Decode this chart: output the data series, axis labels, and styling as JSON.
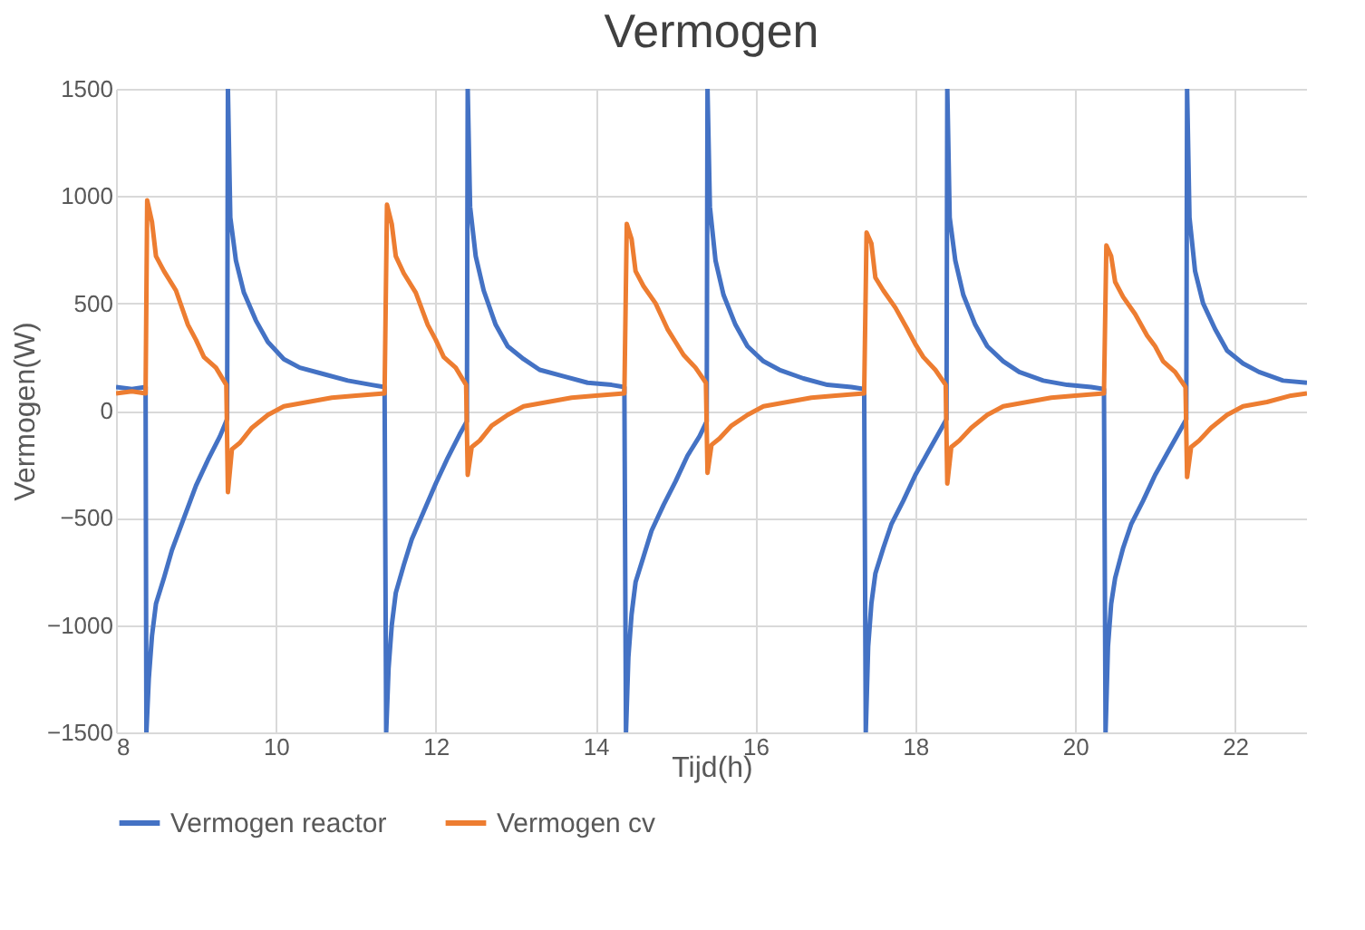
{
  "chart_data": {
    "type": "line",
    "title": "Vermogen",
    "xlabel": "Tijd(h)",
    "ylabel": "Vermogen(W)",
    "xlim": [
      8,
      22.9
    ],
    "xticks": [
      8,
      10,
      12,
      14,
      16,
      18,
      20,
      22
    ],
    "ylim": [
      -1500,
      1500
    ],
    "yticks": [
      -1500,
      -1000,
      -500,
      0,
      500,
      1000,
      1500
    ],
    "grid": true,
    "legend": "bottom",
    "line_style": "solid",
    "marker": "none",
    "series": [
      {
        "name": "Vermogen reactor",
        "color": "#4472c4",
        "x": [
          8,
          8.2,
          8.37,
          8.38,
          8.41,
          8.45,
          8.5,
          8.6,
          8.7,
          8.85,
          9.0,
          9.15,
          9.3,
          9.39,
          9.4,
          9.43,
          9.5,
          9.6,
          9.75,
          9.9,
          10.1,
          10.3,
          10.6,
          10.9,
          11.2,
          11.36,
          11.38,
          11.41,
          11.45,
          11.5,
          11.6,
          11.7,
          11.85,
          12.0,
          12.15,
          12.3,
          12.39,
          12.4,
          12.43,
          12.5,
          12.6,
          12.75,
          12.9,
          13.1,
          13.3,
          13.6,
          13.9,
          14.2,
          14.36,
          14.38,
          14.41,
          14.45,
          14.5,
          14.6,
          14.7,
          14.85,
          15.0,
          15.15,
          15.3,
          15.39,
          15.4,
          15.43,
          15.5,
          15.6,
          15.75,
          15.9,
          16.1,
          16.3,
          16.6,
          16.9,
          17.2,
          17.36,
          17.38,
          17.41,
          17.45,
          17.5,
          17.6,
          17.7,
          17.85,
          18.0,
          18.15,
          18.3,
          18.39,
          18.4,
          18.43,
          18.5,
          18.6,
          18.75,
          18.9,
          19.1,
          19.3,
          19.6,
          19.9,
          20.2,
          20.36,
          20.38,
          20.41,
          20.45,
          20.5,
          20.6,
          20.7,
          20.85,
          21.0,
          21.15,
          21.3,
          21.39,
          21.4,
          21.43,
          21.5,
          21.6,
          21.75,
          21.9,
          22.1,
          22.3,
          22.6,
          22.9
        ],
        "values": [
          110,
          100,
          110,
          -1500,
          -1250,
          -1050,
          -900,
          -780,
          -650,
          -500,
          -350,
          -230,
          -120,
          -40,
          1500,
          900,
          700,
          550,
          420,
          320,
          240,
          200,
          170,
          140,
          120,
          110,
          -1500,
          -1200,
          -1000,
          -850,
          -720,
          -600,
          -470,
          -340,
          -220,
          -110,
          -50,
          1500,
          950,
          720,
          560,
          400,
          300,
          240,
          190,
          160,
          130,
          120,
          110,
          -1500,
          -1150,
          -950,
          -800,
          -680,
          -560,
          -440,
          -330,
          -210,
          -120,
          -50,
          1500,
          950,
          700,
          540,
          400,
          300,
          230,
          190,
          150,
          120,
          110,
          100,
          -1500,
          -1100,
          -900,
          -760,
          -640,
          -530,
          -420,
          -300,
          -200,
          -100,
          -40,
          1500,
          900,
          700,
          540,
          400,
          300,
          230,
          180,
          140,
          120,
          110,
          100,
          -1500,
          -1100,
          -900,
          -780,
          -640,
          -530,
          -420,
          -300,
          -200,
          -100,
          -40,
          1500,
          900,
          650,
          500,
          380,
          280,
          220,
          180,
          140,
          130
        ]
      },
      {
        "name": "Vermogen cv",
        "color": "#ed7d31",
        "x": [
          8,
          8.2,
          8.37,
          8.39,
          8.45,
          8.5,
          8.6,
          8.75,
          8.9,
          9.0,
          9.1,
          9.25,
          9.38,
          9.4,
          9.45,
          9.55,
          9.7,
          9.9,
          10.1,
          10.4,
          10.7,
          11.0,
          11.36,
          11.39,
          11.45,
          11.5,
          11.6,
          11.75,
          11.9,
          12.0,
          12.1,
          12.25,
          12.38,
          12.4,
          12.45,
          12.55,
          12.7,
          12.9,
          13.1,
          13.4,
          13.7,
          14.0,
          14.36,
          14.39,
          14.45,
          14.5,
          14.6,
          14.75,
          14.9,
          15.0,
          15.1,
          15.25,
          15.38,
          15.4,
          15.45,
          15.55,
          15.7,
          15.9,
          16.1,
          16.4,
          16.7,
          17.0,
          17.36,
          17.39,
          17.45,
          17.5,
          17.6,
          17.75,
          17.9,
          18.0,
          18.1,
          18.25,
          18.38,
          18.4,
          18.45,
          18.55,
          18.7,
          18.9,
          19.1,
          19.4,
          19.7,
          20.0,
          20.36,
          20.39,
          20.45,
          20.5,
          20.6,
          20.75,
          20.9,
          21.0,
          21.1,
          21.25,
          21.38,
          21.4,
          21.45,
          21.55,
          21.7,
          21.9,
          22.1,
          22.4,
          22.7,
          22.9
        ],
        "values": [
          80,
          90,
          80,
          980,
          880,
          720,
          650,
          560,
          400,
          330,
          250,
          200,
          120,
          -380,
          -180,
          -150,
          -80,
          -20,
          20,
          40,
          60,
          70,
          80,
          960,
          870,
          720,
          640,
          550,
          400,
          330,
          250,
          200,
          120,
          -300,
          -170,
          -140,
          -70,
          -20,
          20,
          40,
          60,
          70,
          80,
          870,
          800,
          650,
          580,
          500,
          380,
          320,
          260,
          200,
          130,
          -290,
          -160,
          -130,
          -70,
          -20,
          20,
          40,
          60,
          70,
          80,
          830,
          780,
          620,
          560,
          480,
          380,
          310,
          250,
          190,
          120,
          -340,
          -170,
          -140,
          -80,
          -20,
          20,
          40,
          60,
          70,
          80,
          770,
          720,
          600,
          530,
          450,
          350,
          300,
          230,
          180,
          110,
          -310,
          -170,
          -140,
          -80,
          -20,
          20,
          40,
          70,
          80
        ]
      }
    ]
  }
}
